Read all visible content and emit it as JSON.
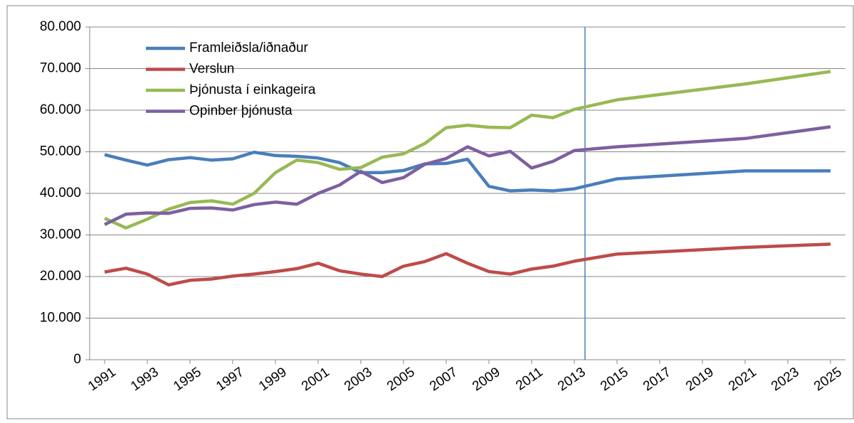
{
  "chart_data": {
    "type": "line",
    "x": [
      1991,
      1992,
      1993,
      1994,
      1995,
      1996,
      1997,
      1998,
      1999,
      2000,
      2001,
      2002,
      2003,
      2004,
      2005,
      2006,
      2007,
      2008,
      2009,
      2010,
      2011,
      2012,
      2013,
      2015,
      2021,
      2025
    ],
    "series": [
      {
        "name": "Framleiðsla/iðnaður",
        "color": "#4a7ebb",
        "values": [
          49300,
          48000,
          46800,
          48100,
          48600,
          48000,
          48300,
          49900,
          49100,
          48900,
          48500,
          47400,
          45000,
          45000,
          45500,
          47100,
          47200,
          48200,
          41700,
          40600,
          40800,
          40600,
          41100,
          43500,
          45400,
          45400
        ]
      },
      {
        "name": "Verslun",
        "color": "#be4b48",
        "values": [
          21100,
          22000,
          20600,
          18000,
          19100,
          19400,
          20100,
          20600,
          21200,
          21900,
          23200,
          21400,
          20600,
          20000,
          22500,
          23600,
          25500,
          23200,
          21200,
          20600,
          21800,
          22500,
          23700,
          25400,
          27000,
          27800
        ]
      },
      {
        "name": "Þjónusta í einkageira",
        "color": "#98b954",
        "values": [
          34000,
          31700,
          33800,
          36200,
          37800,
          38200,
          37400,
          40000,
          45000,
          48000,
          47400,
          45800,
          46200,
          48700,
          49500,
          52000,
          55800,
          56400,
          55900,
          55800,
          58800,
          58200,
          60200,
          62500,
          66300,
          69300
        ]
      },
      {
        "name": "Opinber þjónusta",
        "color": "#7d60a0",
        "values": [
          32500,
          35000,
          35300,
          35200,
          36400,
          36500,
          36000,
          37300,
          37900,
          37400,
          40000,
          42000,
          45300,
          42600,
          43800,
          47000,
          48400,
          51200,
          49000,
          50100,
          46100,
          47700,
          50300,
          51200,
          53200,
          56000
        ]
      }
    ],
    "vline": 2013.5,
    "vline_color": "#4a7ebb",
    "xlim": [
      1990.3,
      2025.7
    ],
    "xticks": [
      1991,
      1993,
      1995,
      1997,
      1999,
      2001,
      2003,
      2005,
      2007,
      2009,
      2011,
      2013,
      2015,
      2017,
      2019,
      2021,
      2023,
      2025
    ],
    "ylim": [
      0,
      80000
    ],
    "yticks": [
      0,
      {
        "value": 10000,
        "label": "10.000"
      },
      {
        "value": 20000,
        "label": "20.000"
      },
      {
        "value": 30000,
        "label": "30.000"
      },
      {
        "value": 40000,
        "label": "40.000"
      },
      {
        "value": 50000,
        "label": "50.000"
      },
      {
        "value": 60000,
        "label": "60.000"
      },
      {
        "value": 70000,
        "label": "70.000"
      },
      {
        "value": 80000,
        "label": "80.000"
      }
    ],
    "grid": true,
    "legend": "top-left"
  }
}
